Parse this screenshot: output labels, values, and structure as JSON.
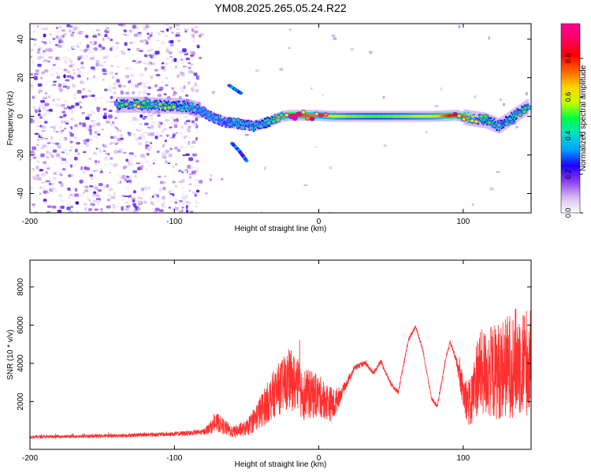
{
  "title": "YM08.2025.265.05.24.R22",
  "chart_data": [
    {
      "type": "heatmap",
      "name": "spectrogram",
      "xlabel": "Height of straight line (km)",
      "ylabel": "Frequency (Hz)",
      "xlim": [
        -200,
        147
      ],
      "ylim": [
        -50,
        48
      ],
      "xticks": [
        -200,
        -100,
        0,
        100
      ],
      "yticks": [
        -40,
        -20,
        0,
        20,
        40
      ],
      "colorbar": {
        "label": "Normalized spectral amplitude",
        "range": [
          0,
          0.98
        ],
        "ticks": [
          0.0,
          0.2,
          0.4,
          0.6,
          0.8
        ],
        "colormap": [
          "#ffffff",
          "#d4b8f0",
          "#8a3cf0",
          "#1c00ff",
          "#00a0ff",
          "#00e0c8",
          "#00ff40",
          "#c8ff00",
          "#ffd200",
          "#ff6000",
          "#ff0000",
          "#ff0060",
          "#ff0090"
        ]
      },
      "noise_region": {
        "x": [
          -200,
          -82
        ],
        "y": [
          -50,
          48
        ],
        "level": [
          0.0,
          0.15
        ]
      },
      "ridge": [
        {
          "x": -140,
          "y": 6,
          "a": 0.45
        },
        {
          "x": -130,
          "y": 6,
          "a": 0.5
        },
        {
          "x": -120,
          "y": 6,
          "a": 0.5
        },
        {
          "x": -110,
          "y": 5.5,
          "a": 0.48
        },
        {
          "x": -100,
          "y": 5.5,
          "a": 0.45
        },
        {
          "x": -90,
          "y": 5,
          "a": 0.4
        },
        {
          "x": -82,
          "y": 3,
          "a": 0.35
        },
        {
          "x": -75,
          "y": 0,
          "a": 0.35
        },
        {
          "x": -65,
          "y": -3,
          "a": 0.35
        },
        {
          "x": -55,
          "y": -4,
          "a": 0.4
        },
        {
          "x": -45,
          "y": -5,
          "a": 0.42
        },
        {
          "x": -35,
          "y": -3,
          "a": 0.45
        },
        {
          "x": -25,
          "y": 0,
          "a": 0.6
        },
        {
          "x": -20,
          "y": 0.5,
          "a": 0.9
        },
        {
          "x": -10,
          "y": 0.5,
          "a": 0.75
        },
        {
          "x": 0,
          "y": 0.5,
          "a": 0.7
        },
        {
          "x": 10,
          "y": 0,
          "a": 0.6
        },
        {
          "x": 20,
          "y": 0,
          "a": 0.55
        },
        {
          "x": 40,
          "y": 0,
          "a": 0.52
        },
        {
          "x": 60,
          "y": 0,
          "a": 0.55
        },
        {
          "x": 80,
          "y": 0,
          "a": 0.6
        },
        {
          "x": 95,
          "y": 0.5,
          "a": 0.9
        },
        {
          "x": 105,
          "y": -1,
          "a": 0.6
        },
        {
          "x": 115,
          "y": -2,
          "a": 0.45
        },
        {
          "x": 125,
          "y": -5,
          "a": 0.4
        },
        {
          "x": 135,
          "y": 0,
          "a": 0.45
        },
        {
          "x": 145,
          "y": 5,
          "a": 0.5
        }
      ],
      "side_branches": [
        {
          "x": [
            -62,
            -58,
            -54
          ],
          "y": [
            16,
            14,
            12
          ],
          "a": 0.35
        },
        {
          "x": [
            -60,
            -55,
            -50
          ],
          "y": [
            -14,
            -18,
            -23
          ],
          "a": 0.3
        }
      ]
    },
    {
      "type": "line",
      "name": "snr",
      "xlabel": "Height of straight line (km)",
      "ylabel": "SNR (10 * v/v)",
      "xlim": [
        -200,
        147
      ],
      "ylim": [
        -500,
        9400
      ],
      "xticks": [
        -200,
        -100,
        0,
        100
      ],
      "yticks": [
        2000,
        4000,
        6000,
        8000
      ],
      "color": "#ff3030",
      "envelope": [
        {
          "x": -200,
          "base": 150,
          "noise": 80
        },
        {
          "x": -150,
          "base": 200,
          "noise": 90
        },
        {
          "x": -100,
          "base": 300,
          "noise": 120
        },
        {
          "x": -80,
          "base": 400,
          "noise": 150
        },
        {
          "x": -70,
          "base": 900,
          "noise": 500
        },
        {
          "x": -60,
          "base": 400,
          "noise": 300
        },
        {
          "x": -50,
          "base": 600,
          "noise": 400
        },
        {
          "x": -40,
          "base": 1500,
          "noise": 900
        },
        {
          "x": -30,
          "base": 2500,
          "noise": 1300
        },
        {
          "x": -20,
          "base": 3200,
          "noise": 1600
        },
        {
          "x": -10,
          "base": 2400,
          "noise": 1400
        },
        {
          "x": 0,
          "base": 2300,
          "noise": 1100
        },
        {
          "x": 10,
          "base": 1800,
          "noise": 900
        },
        {
          "x": 16,
          "base": 2500,
          "noise": 300
        },
        {
          "x": 25,
          "base": 3800,
          "noise": 150
        },
        {
          "x": 32,
          "base": 4000,
          "noise": 120
        },
        {
          "x": 38,
          "base": 3500,
          "noise": 120
        },
        {
          "x": 43,
          "base": 4100,
          "noise": 120
        },
        {
          "x": 50,
          "base": 2900,
          "noise": 120
        },
        {
          "x": 55,
          "base": 2500,
          "noise": 120
        },
        {
          "x": 62,
          "base": 5200,
          "noise": 120
        },
        {
          "x": 67,
          "base": 5950,
          "noise": 120
        },
        {
          "x": 72,
          "base": 4700,
          "noise": 120
        },
        {
          "x": 78,
          "base": 2200,
          "noise": 120
        },
        {
          "x": 82,
          "base": 1700,
          "noise": 120
        },
        {
          "x": 88,
          "base": 4300,
          "noise": 120
        },
        {
          "x": 91,
          "base": 5100,
          "noise": 120
        },
        {
          "x": 95,
          "base": 4200,
          "noise": 200
        },
        {
          "x": 100,
          "base": 2500,
          "noise": 900
        },
        {
          "x": 105,
          "base": 1800,
          "noise": 1400
        },
        {
          "x": 110,
          "base": 3500,
          "noise": 2200
        },
        {
          "x": 120,
          "base": 3500,
          "noise": 2500
        },
        {
          "x": 130,
          "base": 3800,
          "noise": 2700
        },
        {
          "x": 140,
          "base": 4200,
          "noise": 3000
        },
        {
          "x": 147,
          "base": 4000,
          "noise": 2800
        }
      ]
    }
  ]
}
